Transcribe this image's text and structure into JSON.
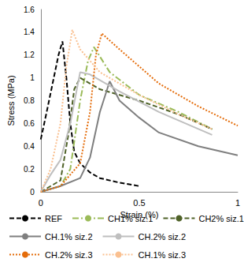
{
  "chart_data": {
    "type": "line",
    "x_label": "Strain (%)",
    "y_label": "Stress (MPa)",
    "xlim": [
      0,
      1
    ],
    "xticks": [
      0,
      0.5,
      1
    ],
    "ylim": [
      0,
      1.6
    ],
    "yticks": [
      0,
      0.2,
      0.4,
      0.6,
      0.8,
      1,
      1.2,
      1.4,
      1.6
    ],
    "grid": false,
    "legend": "bottom",
    "marker": "none",
    "series": [
      {
        "name": "REF",
        "color": "#000000",
        "line_style": "dashed",
        "x": [
          0,
          0.03,
          0.06,
          0.09,
          0.11,
          0.13,
          0.15,
          0.17,
          0.2,
          0.25,
          0.3,
          0.4,
          0.5
        ],
        "values": [
          0.46,
          0.7,
          0.95,
          1.2,
          1.32,
          1.0,
          0.6,
          0.35,
          0.25,
          0.17,
          0.12,
          0.08,
          0.05
        ]
      },
      {
        "name": "CH1% siz.1",
        "color": "#9bbb59",
        "line_style": "dashdot",
        "x": [
          0,
          0.1,
          0.15,
          0.2,
          0.24,
          0.27,
          0.35,
          0.5,
          0.7,
          0.87
        ],
        "values": [
          0,
          0.05,
          0.2,
          0.8,
          1.15,
          1.27,
          1.05,
          0.85,
          0.7,
          0.55
        ]
      },
      {
        "name": "CH2% siz.1",
        "color": "#4f6228",
        "line_style": "dashed",
        "x": [
          0,
          0.1,
          0.14,
          0.17,
          0.2,
          0.3,
          0.5,
          0.7,
          0.87
        ],
        "values": [
          0,
          0.1,
          0.5,
          0.9,
          1.0,
          0.9,
          0.8,
          0.68,
          0.55
        ]
      },
      {
        "name": "CH.1% siz.2",
        "color": "#7f7f7f",
        "line_style": "solid",
        "x": [
          0,
          0.1,
          0.2,
          0.25,
          0.3,
          0.35,
          0.4,
          0.5,
          0.6,
          0.8,
          1.0
        ],
        "values": [
          0,
          0.05,
          0.12,
          0.3,
          0.7,
          0.97,
          0.8,
          0.65,
          0.52,
          0.4,
          0.32
        ]
      },
      {
        "name": "CH.2% siz.2",
        "color": "#bfbfbf",
        "line_style": "solid",
        "x": [
          0,
          0.05,
          0.1,
          0.15,
          0.2,
          0.25,
          0.4,
          0.6,
          0.87
        ],
        "values": [
          0,
          0.15,
          0.28,
          0.6,
          1.05,
          1.03,
          0.88,
          0.7,
          0.5
        ]
      },
      {
        "name": "CH.2% siz.3",
        "color": "#e46c0a",
        "line_style": "dotted",
        "x": [
          0,
          0.1,
          0.2,
          0.25,
          0.28,
          0.31,
          0.4,
          0.6,
          0.8,
          1.0
        ],
        "values": [
          0,
          0.05,
          0.25,
          0.7,
          1.2,
          1.39,
          1.25,
          0.95,
          0.75,
          0.58
        ]
      },
      {
        "name": "CH.1% siz.3",
        "color": "#fac090",
        "line_style": "dotted",
        "x": [
          0,
          0.05,
          0.1,
          0.13,
          0.16,
          0.2,
          0.3,
          0.5,
          0.7,
          0.87
        ],
        "values": [
          0,
          0.2,
          0.6,
          1.1,
          1.42,
          1.25,
          1.05,
          0.85,
          0.68,
          0.55
        ]
      }
    ]
  }
}
